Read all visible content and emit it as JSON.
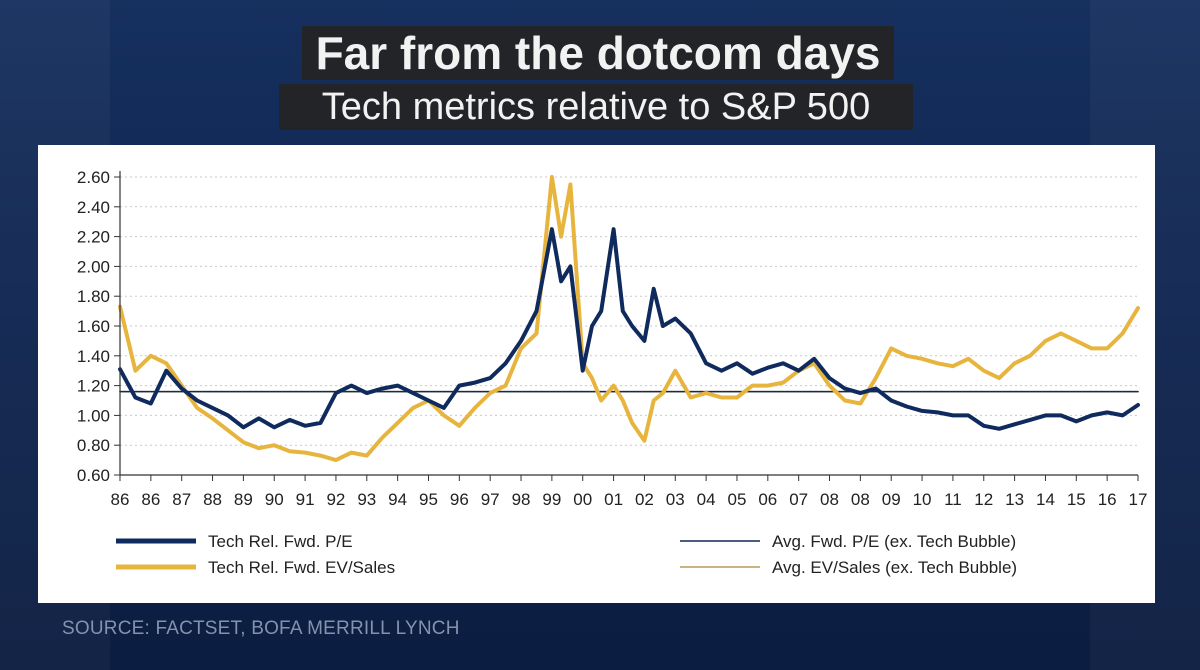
{
  "header": {
    "title": "Far from the dotcom days",
    "subtitle": "Tech metrics relative to S&P 500"
  },
  "footer": {
    "source": "SOURCE: FACTSET, BOFA MERRILL LYNCH"
  },
  "colors": {
    "navy": "#0f2a5c",
    "gold": "#e7b53e",
    "avg_line": "#b89a55"
  },
  "chart_data": {
    "type": "line",
    "ylim": [
      0.6,
      2.6
    ],
    "y_ticks": [
      "2.60",
      "2.40",
      "2.20",
      "2.00",
      "1.80",
      "1.60",
      "1.40",
      "1.20",
      "1.00",
      "0.80",
      "0.60"
    ],
    "x_ticks": [
      "86",
      "86",
      "87",
      "88",
      "89",
      "90",
      "91",
      "92",
      "93",
      "94",
      "95",
      "96",
      "97",
      "98",
      "99",
      "00",
      "01",
      "02",
      "03",
      "04",
      "05",
      "06",
      "07",
      "08",
      "08",
      "09",
      "10",
      "11",
      "12",
      "13",
      "14",
      "15",
      "16",
      "17"
    ],
    "x_range": [
      0,
      33
    ],
    "series": [
      {
        "name": "Tech Rel. Fwd. P/E",
        "style": "thick",
        "color": "#0f2a5c",
        "x": [
          0,
          0.5,
          1,
          1.5,
          2,
          2.5,
          3,
          3.5,
          4,
          4.5,
          5,
          5.5,
          6,
          6.5,
          7,
          7.5,
          8,
          8.5,
          9,
          9.5,
          10,
          10.5,
          11,
          11.5,
          12,
          12.5,
          13,
          13.5,
          14,
          14.3,
          14.6,
          15,
          15.3,
          15.6,
          16,
          16.3,
          16.6,
          17,
          17.3,
          17.6,
          18,
          18.5,
          19,
          19.5,
          20,
          20.5,
          21,
          21.5,
          22,
          22.5,
          23,
          23.5,
          24,
          24.5,
          25,
          25.5,
          26,
          26.5,
          27,
          27.5,
          28,
          28.5,
          29,
          29.5,
          30,
          30.5,
          31,
          31.5,
          32,
          32.5,
          33
        ],
        "y": [
          1.31,
          1.12,
          1.08,
          1.3,
          1.18,
          1.1,
          1.05,
          1.0,
          0.92,
          0.98,
          0.92,
          0.97,
          0.93,
          0.95,
          1.15,
          1.2,
          1.15,
          1.18,
          1.2,
          1.15,
          1.1,
          1.05,
          1.2,
          1.22,
          1.25,
          1.35,
          1.5,
          1.7,
          2.25,
          1.9,
          2.0,
          1.3,
          1.6,
          1.7,
          2.25,
          1.7,
          1.6,
          1.5,
          1.85,
          1.6,
          1.65,
          1.55,
          1.35,
          1.3,
          1.35,
          1.28,
          1.32,
          1.35,
          1.3,
          1.38,
          1.25,
          1.18,
          1.15,
          1.18,
          1.1,
          1.06,
          1.03,
          1.02,
          1.0,
          1.0,
          0.93,
          0.91,
          0.94,
          0.97,
          1.0,
          1.0,
          0.96,
          1.0,
          1.02,
          1.0,
          1.07
        ]
      },
      {
        "name": "Tech Rel. Fwd. EV/Sales",
        "style": "thick",
        "color": "#e7b53e",
        "x": [
          0,
          0.5,
          1,
          1.5,
          2,
          2.5,
          3,
          3.5,
          4,
          4.5,
          5,
          5.5,
          6,
          6.5,
          7,
          7.5,
          8,
          8.5,
          9,
          9.5,
          10,
          10.5,
          11,
          11.5,
          12,
          12.5,
          13,
          13.5,
          14,
          14.3,
          14.6,
          15,
          15.3,
          15.6,
          16,
          16.3,
          16.6,
          17,
          17.3,
          17.6,
          18,
          18.5,
          19,
          19.5,
          20,
          20.5,
          21,
          21.5,
          22,
          22.5,
          23,
          23.5,
          24,
          24.5,
          25,
          25.5,
          26,
          26.5,
          27,
          27.5,
          28,
          28.5,
          29,
          29.5,
          30,
          30.5,
          31,
          31.5,
          32,
          32.5,
          33
        ],
        "y": [
          1.73,
          1.3,
          1.4,
          1.35,
          1.2,
          1.05,
          0.98,
          0.9,
          0.82,
          0.78,
          0.8,
          0.76,
          0.75,
          0.73,
          0.7,
          0.75,
          0.73,
          0.85,
          0.95,
          1.05,
          1.1,
          1.0,
          0.93,
          1.05,
          1.15,
          1.2,
          1.45,
          1.55,
          2.6,
          2.2,
          2.55,
          1.35,
          1.25,
          1.1,
          1.2,
          1.1,
          0.95,
          0.83,
          1.1,
          1.15,
          1.3,
          1.12,
          1.15,
          1.12,
          1.12,
          1.2,
          1.2,
          1.22,
          1.3,
          1.35,
          1.2,
          1.1,
          1.08,
          1.25,
          1.45,
          1.4,
          1.38,
          1.35,
          1.33,
          1.38,
          1.3,
          1.25,
          1.35,
          1.4,
          1.5,
          1.55,
          1.5,
          1.45,
          1.45,
          1.55,
          1.72
        ]
      },
      {
        "name": "Avg. Fwd. P/E (ex. Tech Bubble)",
        "style": "thin",
        "color": "#0f2a5c",
        "x": [
          0,
          33
        ],
        "y": [
          1.16,
          1.16
        ]
      },
      {
        "name": "Avg. EV/Sales (ex. Tech Bubble)",
        "style": "thin",
        "color": "#b89a55",
        "x": [
          0,
          33
        ],
        "y": [
          1.16,
          1.16
        ]
      }
    ]
  }
}
